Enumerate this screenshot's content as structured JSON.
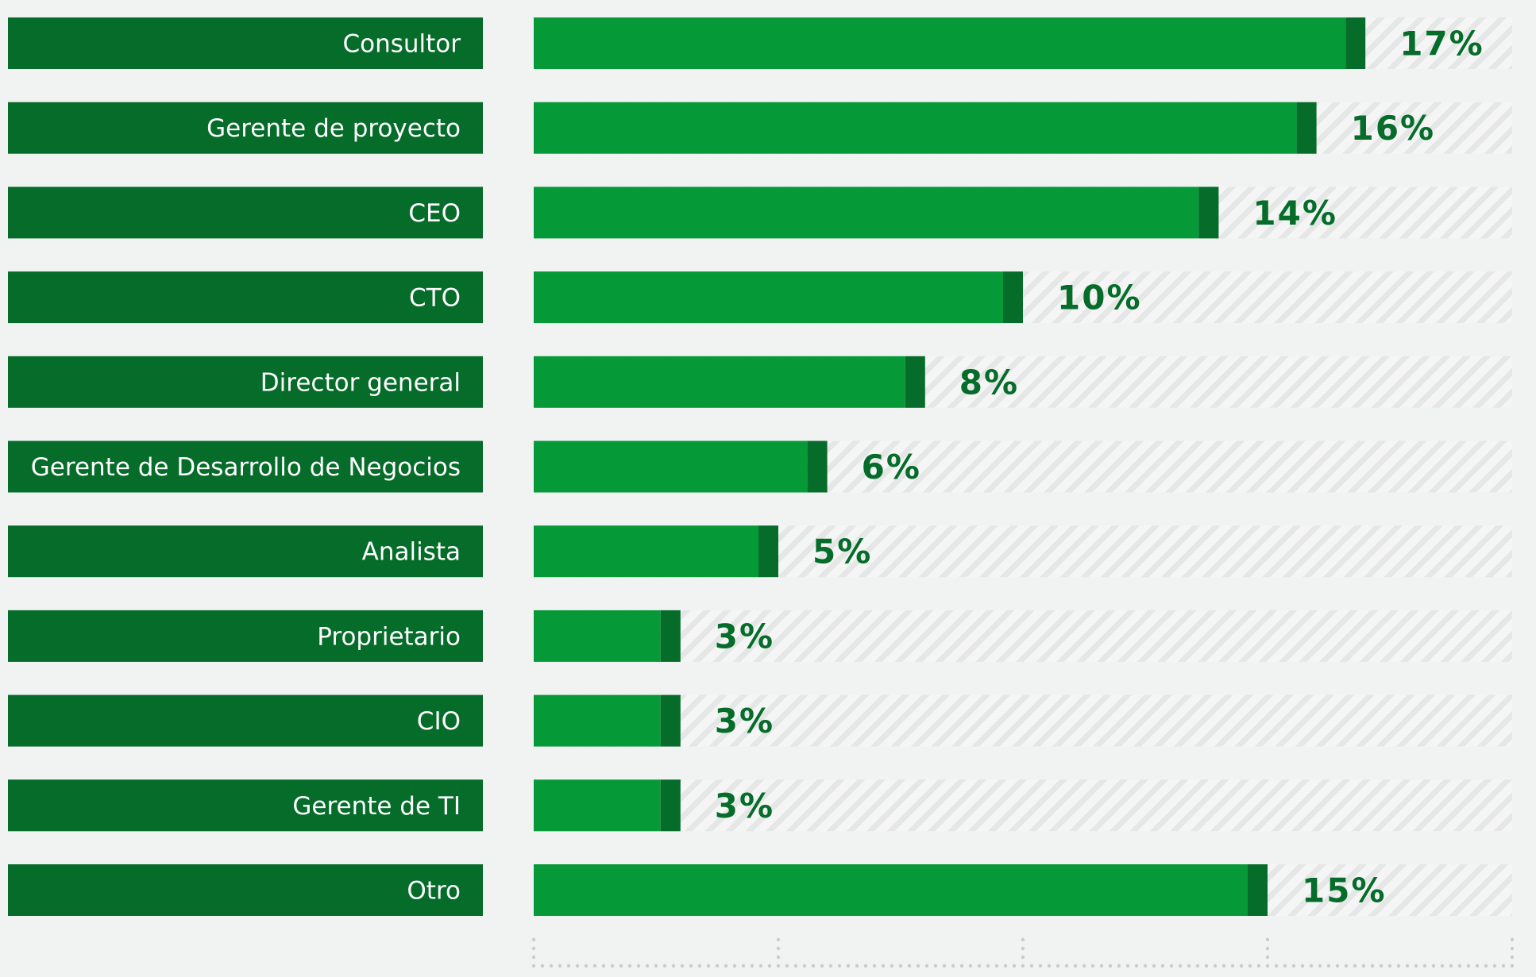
{
  "chart_data": {
    "type": "bar",
    "orientation": "horizontal",
    "title": "",
    "xlabel": "",
    "ylabel": "",
    "categories": [
      "Consultor",
      "Gerente de proyecto",
      "CEO",
      "CTO",
      "Director general",
      "Gerente de Desarrollo de Negocios",
      "Analista",
      "Proprietario",
      "CIO",
      "Gerente de TI",
      "Otro"
    ],
    "values": [
      17,
      16,
      14,
      10,
      8,
      6,
      5,
      3,
      3,
      3,
      15
    ],
    "value_labels": [
      "17%",
      "16%",
      "14%",
      "10%",
      "8%",
      "6%",
      "5%",
      "3%",
      "3%",
      "3%",
      "15%"
    ],
    "xlim": [
      0,
      20
    ],
    "grid": "dotted x-axis ticks at bottom",
    "legend": "none",
    "colors": {
      "label_box": "#056c2a",
      "bar_fill": "#069938",
      "bar_cap": "#056c2a",
      "value_text": "#056c2a",
      "track_stripe": "#e2e5e3",
      "background": "#f1f3f2",
      "axis_dots": "#c9ccca"
    }
  }
}
